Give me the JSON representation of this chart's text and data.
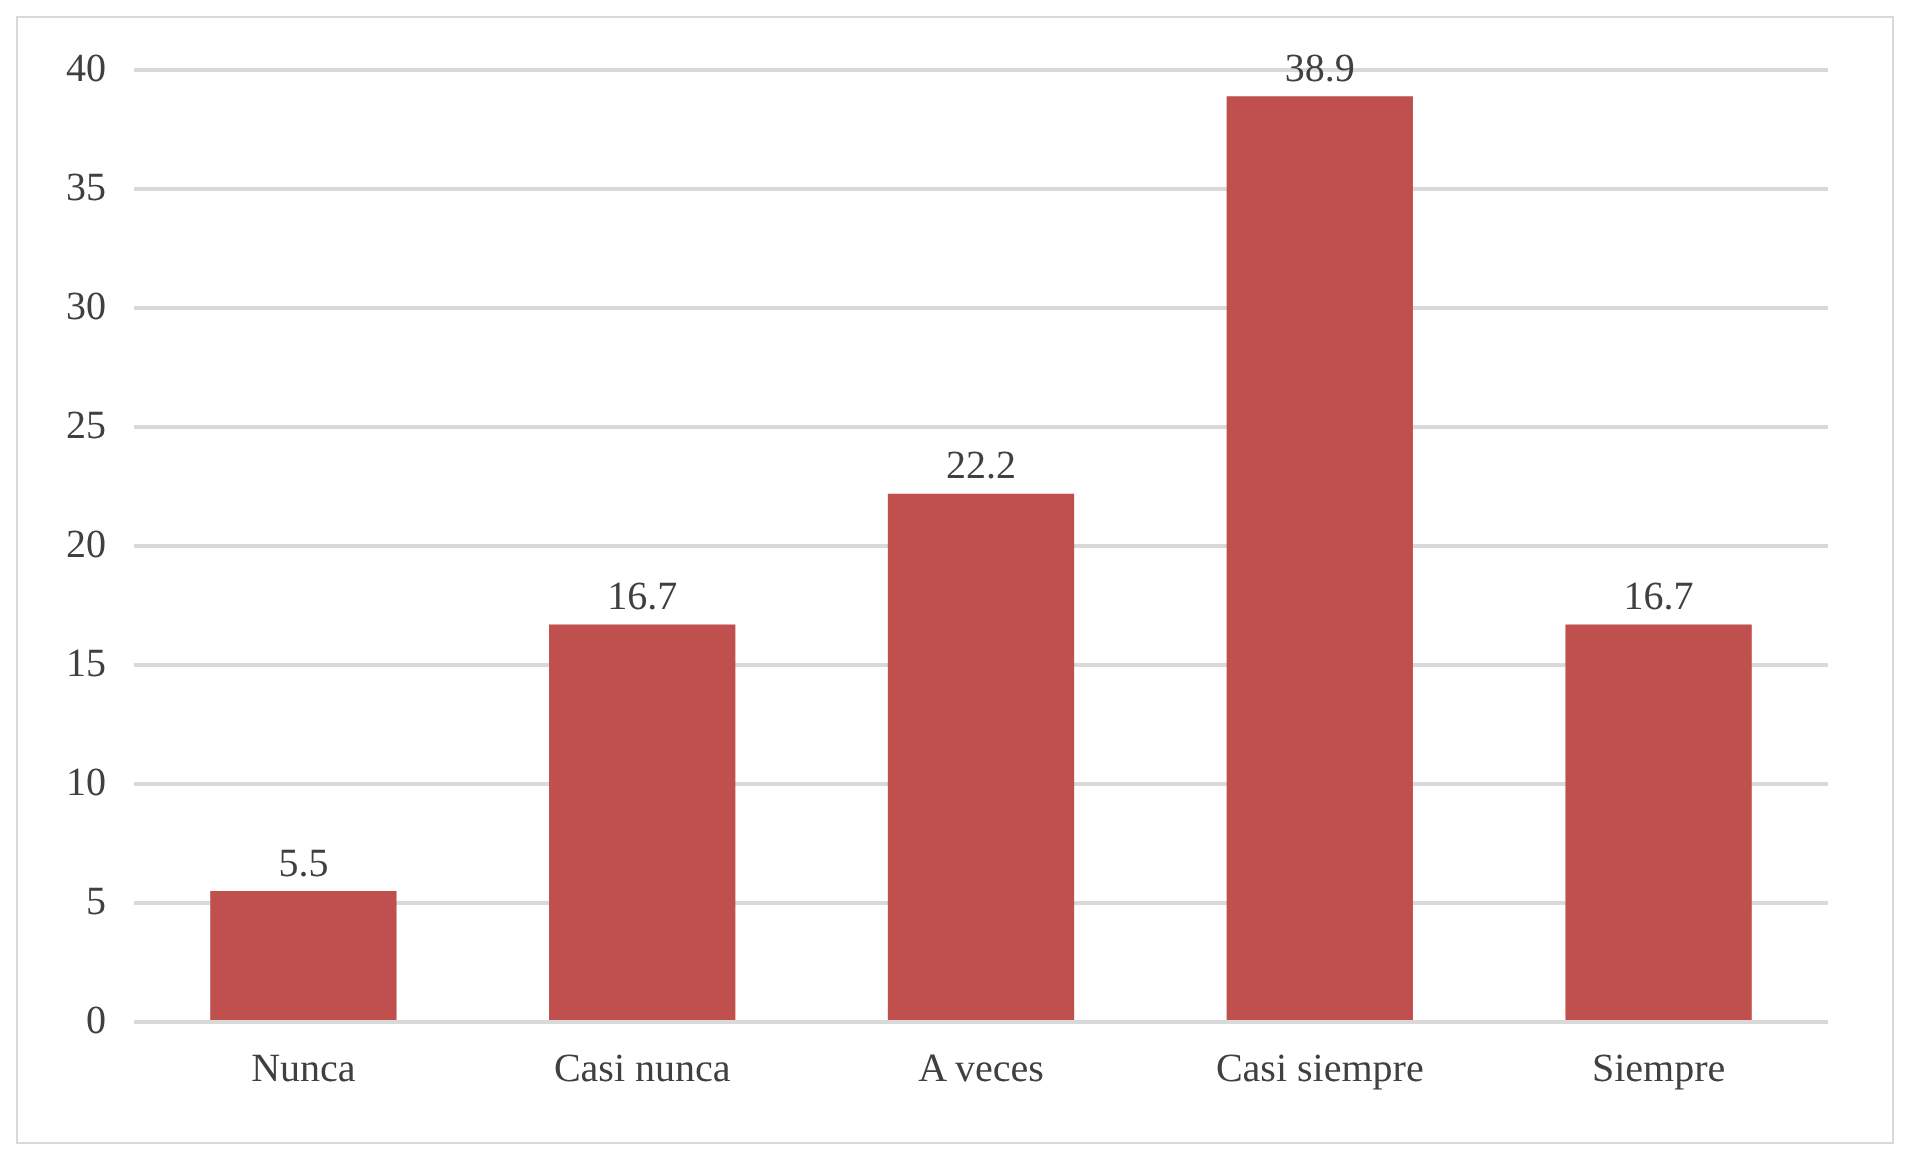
{
  "chart_data": {
    "type": "bar",
    "categories": [
      "Nunca",
      "Casi nunca",
      "A veces",
      "Casi siempre",
      "Siempre"
    ],
    "values": [
      5.5,
      16.7,
      22.2,
      38.9,
      16.7
    ],
    "color": "#c0504d",
    "ylim": [
      0,
      40
    ],
    "yticks": [
      0,
      5,
      10,
      15,
      20,
      25,
      30,
      35,
      40
    ],
    "grid": "y",
    "data_labels": true,
    "legend": false
  }
}
